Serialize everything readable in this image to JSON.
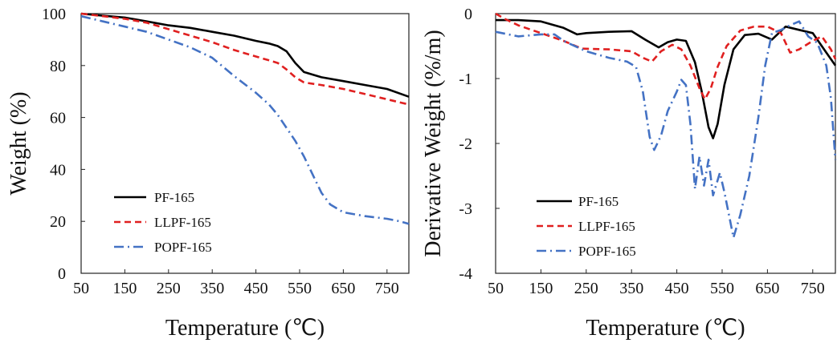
{
  "chart_data": [
    {
      "type": "line",
      "xlabel": "Temperature (℃)",
      "ylabel": "Weight (%)",
      "xlim": [
        50,
        800
      ],
      "ylim": [
        0,
        100
      ],
      "xticks": [
        50,
        150,
        250,
        350,
        450,
        550,
        650,
        750
      ],
      "yticks": [
        0,
        20,
        40,
        60,
        80,
        100
      ],
      "legend_position": "bottom-left",
      "series": [
        {
          "name": "PF-165",
          "color": "#000000",
          "dash": "solid",
          "points": [
            [
              50,
              100
            ],
            [
              100,
              99.2
            ],
            [
              150,
              98.5
            ],
            [
              200,
              97
            ],
            [
              250,
              95.5
            ],
            [
              300,
              94.5
            ],
            [
              350,
              93
            ],
            [
              400,
              91.5
            ],
            [
              450,
              89.5
            ],
            [
              480,
              88.5
            ],
            [
              500,
              87.5
            ],
            [
              520,
              85.5
            ],
            [
              540,
              81
            ],
            [
              560,
              77.5
            ],
            [
              580,
              76.5
            ],
            [
              600,
              75.5
            ],
            [
              650,
              74
            ],
            [
              700,
              72.5
            ],
            [
              750,
              71
            ],
            [
              800,
              68
            ]
          ]
        },
        {
          "name": "LLPF-165",
          "color": "#e02020",
          "dash": "8,5",
          "points": [
            [
              50,
              100
            ],
            [
              100,
              99
            ],
            [
              150,
              98
            ],
            [
              200,
              96.5
            ],
            [
              250,
              94
            ],
            [
              300,
              91.5
            ],
            [
              350,
              89
            ],
            [
              400,
              86
            ],
            [
              450,
              83.5
            ],
            [
              480,
              82
            ],
            [
              500,
              81
            ],
            [
              520,
              78.5
            ],
            [
              540,
              75.5
            ],
            [
              560,
              73.5
            ],
            [
              600,
              72.5
            ],
            [
              650,
              71
            ],
            [
              700,
              69
            ],
            [
              750,
              67
            ],
            [
              800,
              65
            ]
          ]
        },
        {
          "name": "POPF-165",
          "color": "#4472c4",
          "dash": "12,5,2,5",
          "points": [
            [
              50,
              99
            ],
            [
              100,
              97
            ],
            [
              150,
              95
            ],
            [
              200,
              93
            ],
            [
              250,
              90
            ],
            [
              300,
              87
            ],
            [
              350,
              83
            ],
            [
              400,
              76
            ],
            [
              450,
              69.5
            ],
            [
              480,
              65
            ],
            [
              500,
              61
            ],
            [
              520,
              56
            ],
            [
              540,
              51
            ],
            [
              560,
              45
            ],
            [
              580,
              38
            ],
            [
              600,
              31
            ],
            [
              620,
              26.5
            ],
            [
              650,
              23.5
            ],
            [
              700,
              22
            ],
            [
              750,
              21
            ],
            [
              780,
              20
            ],
            [
              800,
              19
            ]
          ]
        }
      ]
    },
    {
      "type": "line",
      "xlabel": "Temperature (℃)",
      "ylabel": "Derivative Weight (%/m)",
      "xlim": [
        50,
        800
      ],
      "ylim": [
        -4,
        0
      ],
      "xticks": [
        50,
        150,
        250,
        350,
        450,
        550,
        650,
        750
      ],
      "yticks": [
        0,
        -1,
        -2,
        -3,
        -4
      ],
      "legend_position": "bottom-left",
      "series": [
        {
          "name": "PF-165",
          "color": "#000000",
          "dash": "solid",
          "points": [
            [
              50,
              -0.1
            ],
            [
              100,
              -0.1
            ],
            [
              150,
              -0.12
            ],
            [
              200,
              -0.22
            ],
            [
              230,
              -0.32
            ],
            [
              250,
              -0.3
            ],
            [
              300,
              -0.28
            ],
            [
              350,
              -0.27
            ],
            [
              380,
              -0.4
            ],
            [
              410,
              -0.52
            ],
            [
              430,
              -0.44
            ],
            [
              450,
              -0.4
            ],
            [
              470,
              -0.42
            ],
            [
              490,
              -0.75
            ],
            [
              505,
              -1.2
            ],
            [
              520,
              -1.75
            ],
            [
              530,
              -1.92
            ],
            [
              540,
              -1.7
            ],
            [
              555,
              -1.1
            ],
            [
              575,
              -0.55
            ],
            [
              600,
              -0.33
            ],
            [
              630,
              -0.31
            ],
            [
              660,
              -0.4
            ],
            [
              690,
              -0.2
            ],
            [
              720,
              -0.25
            ],
            [
              750,
              -0.3
            ],
            [
              780,
              -0.6
            ],
            [
              800,
              -0.8
            ]
          ]
        },
        {
          "name": "LLPF-165",
          "color": "#e02020",
          "dash": "8,5",
          "points": [
            [
              50,
              0
            ],
            [
              70,
              -0.08
            ],
            [
              100,
              -0.18
            ],
            [
              150,
              -0.3
            ],
            [
              200,
              -0.42
            ],
            [
              240,
              -0.54
            ],
            [
              300,
              -0.55
            ],
            [
              350,
              -0.58
            ],
            [
              375,
              -0.68
            ],
            [
              395,
              -0.74
            ],
            [
              415,
              -0.58
            ],
            [
              440,
              -0.48
            ],
            [
              460,
              -0.55
            ],
            [
              480,
              -0.8
            ],
            [
              500,
              -1.15
            ],
            [
              512,
              -1.32
            ],
            [
              525,
              -1.15
            ],
            [
              540,
              -0.82
            ],
            [
              560,
              -0.5
            ],
            [
              590,
              -0.26
            ],
            [
              620,
              -0.2
            ],
            [
              650,
              -0.2
            ],
            [
              680,
              -0.3
            ],
            [
              700,
              -0.6
            ],
            [
              720,
              -0.55
            ],
            [
              750,
              -0.42
            ],
            [
              770,
              -0.35
            ],
            [
              790,
              -0.55
            ],
            [
              800,
              -0.7
            ]
          ]
        },
        {
          "name": "POPF-165",
          "color": "#4472c4",
          "dash": "12,5,2,5",
          "points": [
            [
              50,
              -0.28
            ],
            [
              100,
              -0.35
            ],
            [
              150,
              -0.32
            ],
            [
              180,
              -0.32
            ],
            [
              200,
              -0.42
            ],
            [
              250,
              -0.58
            ],
            [
              300,
              -0.68
            ],
            [
              340,
              -0.74
            ],
            [
              360,
              -0.82
            ],
            [
              375,
              -1.2
            ],
            [
              390,
              -1.9
            ],
            [
              400,
              -2.1
            ],
            [
              415,
              -1.88
            ],
            [
              430,
              -1.5
            ],
            [
              450,
              -1.2
            ],
            [
              460,
              -1.02
            ],
            [
              470,
              -1.1
            ],
            [
              480,
              -1.7
            ],
            [
              490,
              -2.7
            ],
            [
              500,
              -2.2
            ],
            [
              510,
              -2.65
            ],
            [
              520,
              -2.25
            ],
            [
              530,
              -2.8
            ],
            [
              545,
              -2.45
            ],
            [
              555,
              -2.75
            ],
            [
              565,
              -3.1
            ],
            [
              575,
              -3.45
            ],
            [
              590,
              -3.1
            ],
            [
              610,
              -2.5
            ],
            [
              630,
              -1.6
            ],
            [
              645,
              -0.8
            ],
            [
              660,
              -0.3
            ],
            [
              680,
              -0.25
            ],
            [
              700,
              -0.18
            ],
            [
              720,
              -0.12
            ],
            [
              740,
              -0.35
            ],
            [
              760,
              -0.45
            ],
            [
              780,
              -0.8
            ],
            [
              790,
              -1.3
            ],
            [
              800,
              -2.25
            ]
          ]
        }
      ]
    }
  ]
}
